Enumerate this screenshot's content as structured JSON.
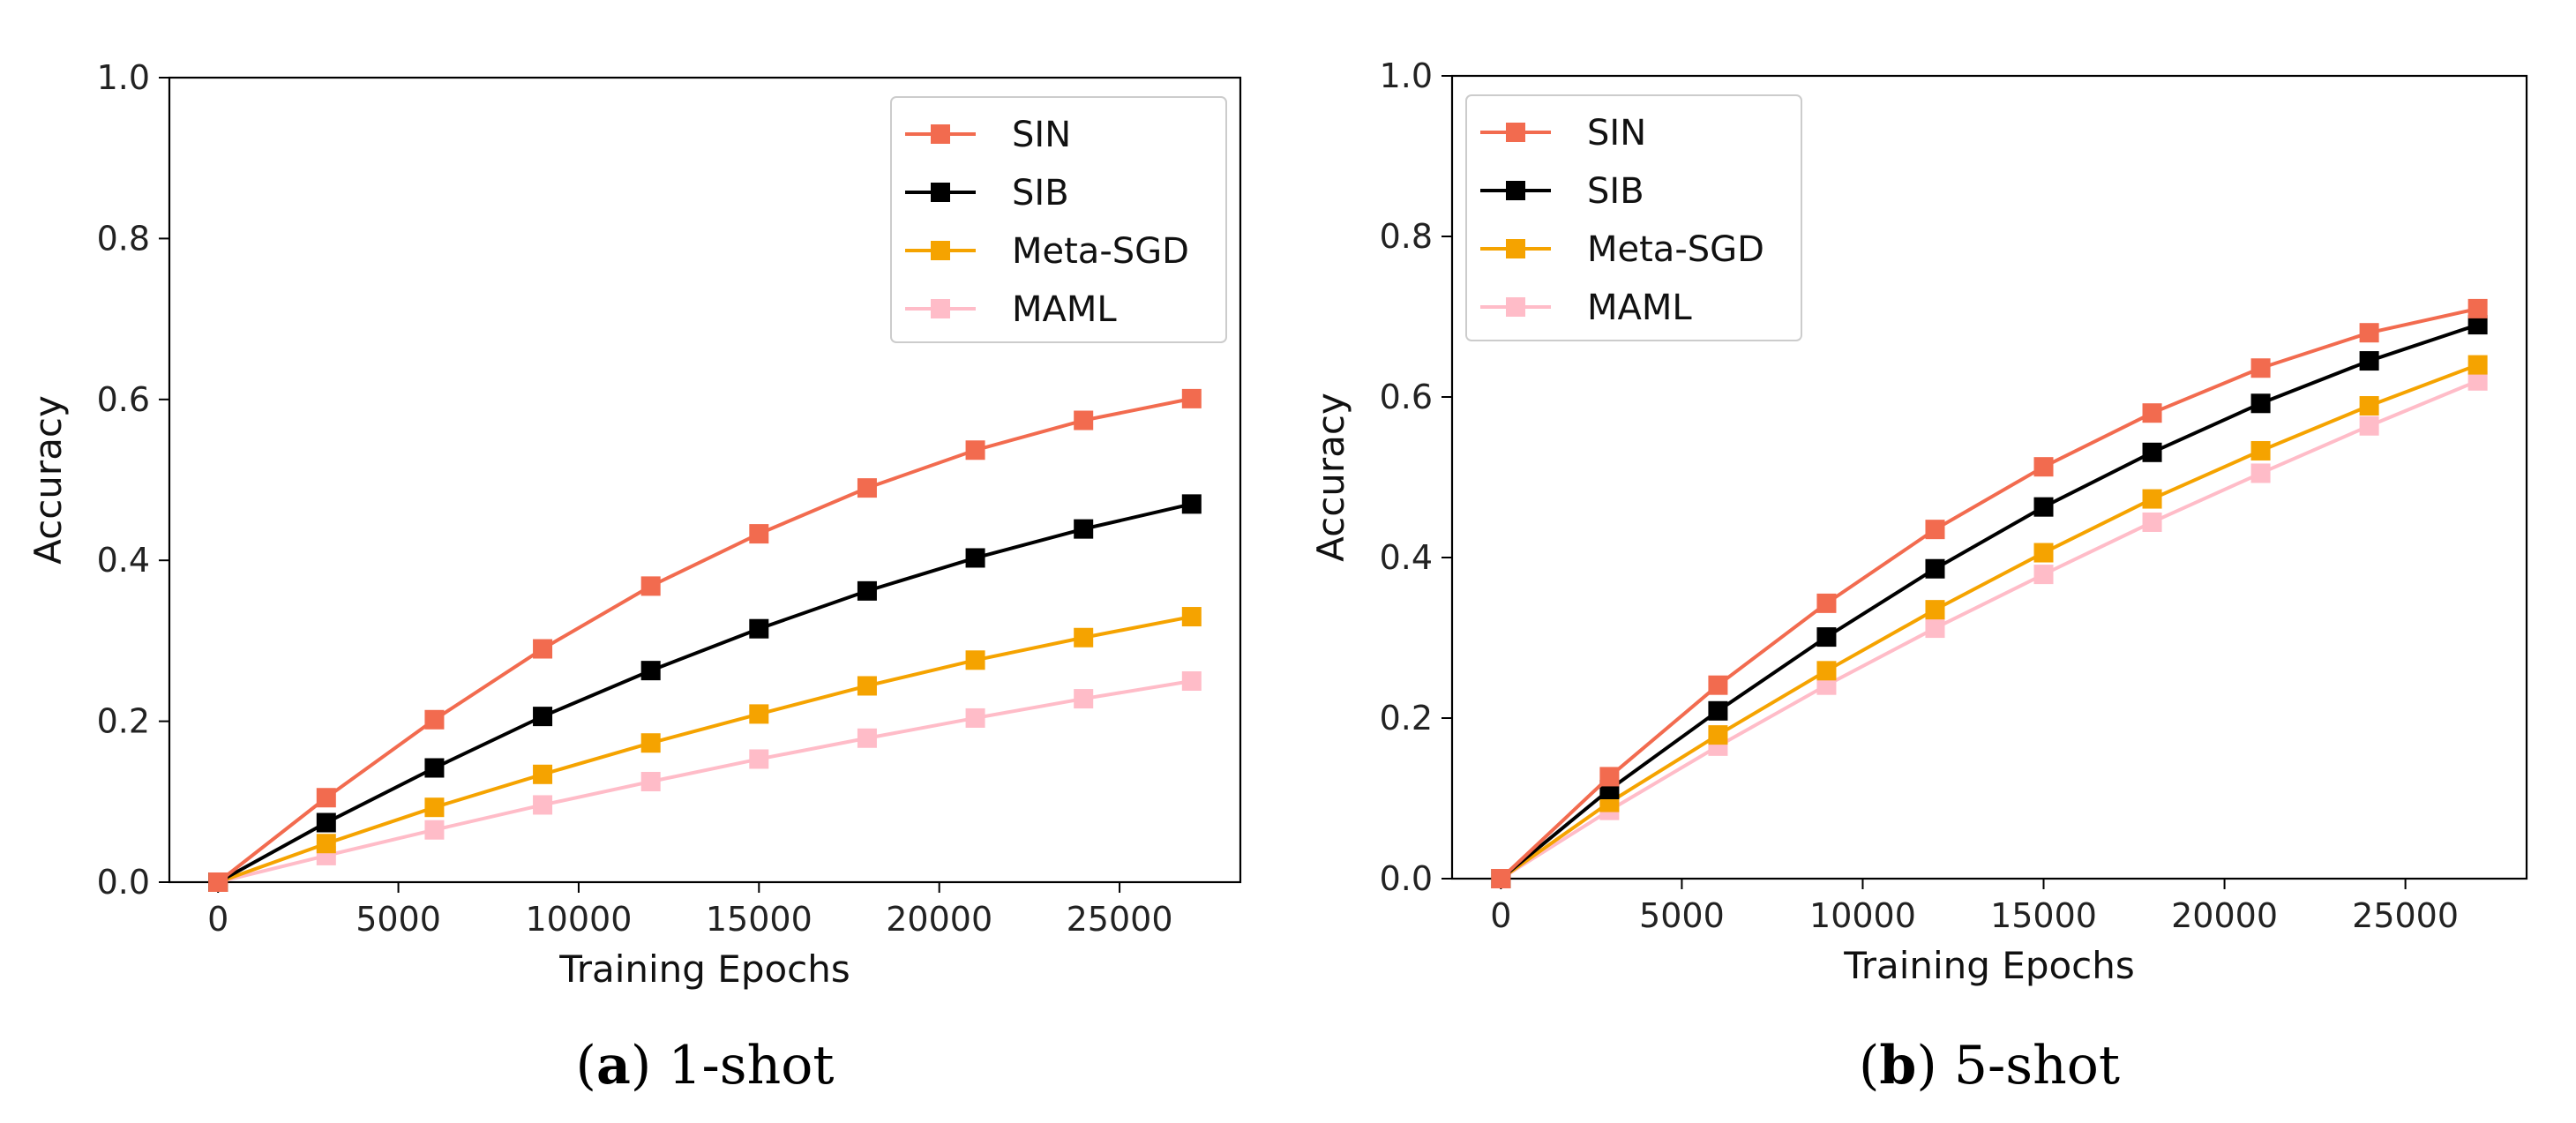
{
  "colors": {
    "SIN": "#F26B4F",
    "SIB": "#000000",
    "Meta-SGD": "#F5A300",
    "MAML": "#FFBCC8"
  },
  "chart_data": [
    {
      "type": "line",
      "panel_caption": {
        "letter": "a",
        "text": "1-shot"
      },
      "xlabel": "Training Epochs",
      "ylabel": "Accuracy",
      "xlim": [
        -1350,
        28350
      ],
      "ylim": [
        0.0,
        1.0
      ],
      "xticks": [
        0,
        5000,
        10000,
        15000,
        20000,
        25000
      ],
      "yticks": [
        0.0,
        0.2,
        0.4,
        0.6,
        0.8,
        1.0
      ],
      "ytick_labels": [
        "0.0",
        "0.2",
        "0.4",
        "0.6",
        "0.8",
        "1.0"
      ],
      "legend_position": "top-right",
      "x": [
        0,
        3000,
        6000,
        9000,
        12000,
        15000,
        18000,
        21000,
        24000,
        27000
      ],
      "series": [
        {
          "name": "SIN",
          "values": [
            0.0,
            0.105,
            0.202,
            0.29,
            0.368,
            0.433,
            0.49,
            0.537,
            0.574,
            0.601
          ]
        },
        {
          "name": "SIB",
          "values": [
            0.0,
            0.074,
            0.142,
            0.206,
            0.263,
            0.315,
            0.362,
            0.403,
            0.439,
            0.47
          ]
        },
        {
          "name": "Meta-SGD",
          "values": [
            0.0,
            0.048,
            0.093,
            0.134,
            0.173,
            0.209,
            0.244,
            0.276,
            0.304,
            0.33
          ]
        },
        {
          "name": "MAML",
          "values": [
            0.0,
            0.033,
            0.065,
            0.096,
            0.125,
            0.153,
            0.179,
            0.204,
            0.228,
            0.25
          ]
        }
      ]
    },
    {
      "type": "line",
      "panel_caption": {
        "letter": "b",
        "text": "5-shot"
      },
      "xlabel": "Training Epochs",
      "ylabel": "Accuracy",
      "xlim": [
        -1350,
        28350
      ],
      "ylim": [
        0.0,
        1.0
      ],
      "xticks": [
        0,
        5000,
        10000,
        15000,
        20000,
        25000
      ],
      "yticks": [
        0.0,
        0.2,
        0.4,
        0.6,
        0.8,
        1.0
      ],
      "ytick_labels": [
        "0.0",
        "0.2",
        "0.4",
        "0.6",
        "0.8",
        "1.0"
      ],
      "legend_position": "top-left",
      "x": [
        0,
        3000,
        6000,
        9000,
        12000,
        15000,
        18000,
        21000,
        24000,
        27000
      ],
      "series": [
        {
          "name": "SIN",
          "values": [
            0.0,
            0.127,
            0.241,
            0.343,
            0.435,
            0.513,
            0.58,
            0.636,
            0.68,
            0.71
          ]
        },
        {
          "name": "SIB",
          "values": [
            0.0,
            0.111,
            0.209,
            0.301,
            0.386,
            0.463,
            0.531,
            0.592,
            0.645,
            0.69
          ]
        },
        {
          "name": "Meta-SGD",
          "values": [
            0.0,
            0.095,
            0.179,
            0.259,
            0.335,
            0.406,
            0.473,
            0.533,
            0.589,
            0.64
          ]
        },
        {
          "name": "MAML",
          "values": [
            0.0,
            0.085,
            0.165,
            0.241,
            0.312,
            0.379,
            0.444,
            0.505,
            0.564,
            0.62
          ]
        }
      ]
    }
  ]
}
